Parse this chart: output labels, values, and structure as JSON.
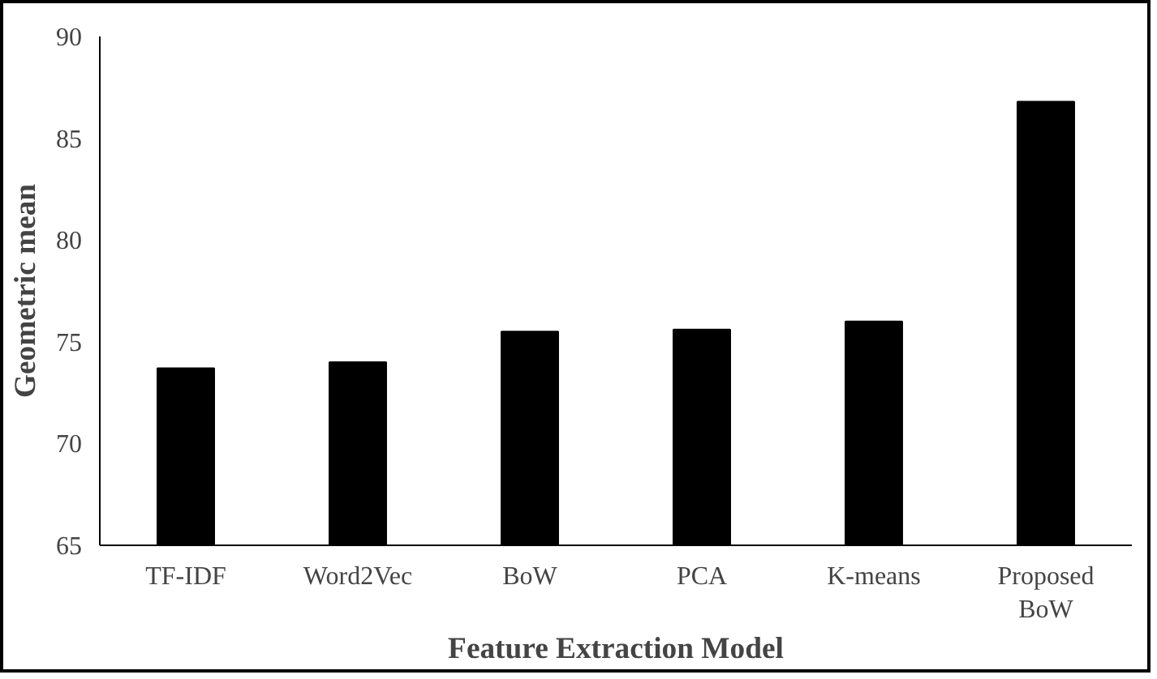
{
  "chart_data": {
    "type": "bar",
    "xlabel": "Feature Extraction Model",
    "ylabel": "Geometric mean",
    "categories": [
      "TF-IDF",
      "Word2Vec",
      "BoW",
      "PCA",
      "K-means",
      "Proposed BoW"
    ],
    "values": [
      73.7,
      74.0,
      75.5,
      75.6,
      76.0,
      86.8
    ],
    "color": "#000000",
    "ylim": [
      65,
      90
    ],
    "yticks": [
      65,
      70,
      75,
      80,
      85,
      90
    ],
    "grid": false
  }
}
